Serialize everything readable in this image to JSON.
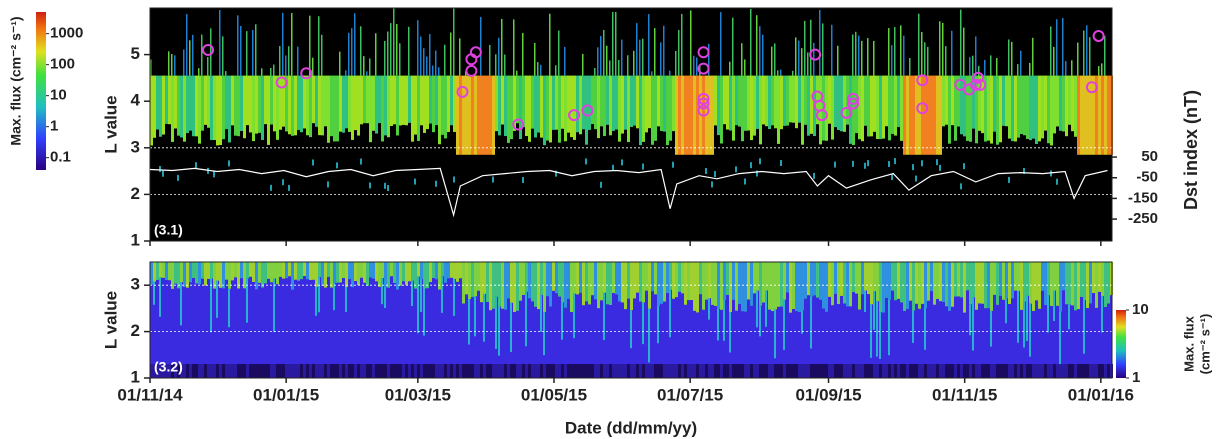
{
  "chart_data": [
    {
      "type": "scatter",
      "panel_label": "(3.1)",
      "ylabel": "L value",
      "y2label": "Dst index (nT)",
      "xlim": [
        "2014-11-01",
        "2016-01-06"
      ],
      "ylim": [
        1,
        6
      ],
      "yticks": [
        1,
        2,
        3,
        4,
        5
      ],
      "reference_lines": [
        2,
        3
      ],
      "y2lim": [
        -356,
        771
      ],
      "y2ticks": [
        50,
        -50,
        -150,
        -250
      ],
      "colorbar": {
        "label": "Max. flux (cm⁻² s⁻¹)",
        "lim": [
          0.04,
          5000
        ],
        "ticks": [
          1000,
          100,
          10,
          1,
          0.1
        ],
        "log": true
      },
      "series": [
        {
          "type": "scatter",
          "color": "#e040e0",
          "x": [
            "2014-11-27",
            "2014-12-30",
            "2015-01-10",
            "2015-03-21",
            "2015-03-25",
            "2015-03-27",
            "2015-03-25",
            "2015-04-15",
            "2015-05-10",
            "2015-05-16",
            "2015-07-07",
            "2015-07-07",
            "2015-07-07",
            "2015-07-07",
            "2015-07-07",
            "2015-08-26",
            "2015-08-27",
            "2015-08-28",
            "2015-08-29",
            "2015-09-09",
            "2015-09-12",
            "2015-09-12",
            "2015-10-13",
            "2015-10-13",
            "2015-10-30",
            "2015-11-03",
            "2015-11-06",
            "2015-11-07",
            "2015-11-08",
            "2015-12-28",
            "2015-12-31"
          ],
          "values": [
            5.1,
            4.4,
            4.6,
            4.2,
            4.9,
            5.05,
            4.65,
            3.5,
            3.7,
            3.8,
            5.05,
            4.7,
            4.05,
            3.95,
            3.8,
            5.0,
            4.1,
            3.9,
            3.7,
            3.75,
            3.95,
            4.05,
            4.45,
            3.85,
            4.35,
            4.25,
            4.35,
            4.5,
            4.35,
            4.3,
            5.4
          ]
        },
        {
          "type": "line",
          "axis": "y2",
          "color": "#ffffff",
          "x": [
            "2014-11-01",
            "2014-11-11",
            "2014-11-21",
            "2014-12-01",
            "2014-12-11",
            "2014-12-21",
            "2014-12-31",
            "2015-01-10",
            "2015-01-20",
            "2015-01-30",
            "2015-02-09",
            "2015-02-19",
            "2015-03-01",
            "2015-03-11",
            "2015-03-17",
            "2015-03-20",
            "2015-03-30",
            "2015-04-09",
            "2015-04-19",
            "2015-04-29",
            "2015-05-09",
            "2015-05-19",
            "2015-05-29",
            "2015-06-08",
            "2015-06-18",
            "2015-06-22",
            "2015-06-25",
            "2015-07-05",
            "2015-07-13",
            "2015-07-23",
            "2015-08-02",
            "2015-08-12",
            "2015-08-22",
            "2015-08-27",
            "2015-09-01",
            "2015-09-09",
            "2015-09-20",
            "2015-09-30",
            "2015-10-07",
            "2015-10-17",
            "2015-10-27",
            "2015-11-06",
            "2015-11-16",
            "2015-11-26",
            "2015-12-06",
            "2015-12-16",
            "2015-12-20",
            "2015-12-25",
            "2016-01-04"
          ],
          "values": [
            -10,
            -15,
            -5,
            -20,
            -10,
            -30,
            -15,
            -45,
            -20,
            -10,
            -40,
            -15,
            -10,
            -5,
            -230,
            -90,
            -40,
            -30,
            -20,
            -15,
            -40,
            -20,
            -15,
            -25,
            -10,
            -200,
            -80,
            -40,
            -55,
            -30,
            -20,
            -30,
            -20,
            -90,
            -40,
            -100,
            -60,
            -30,
            -110,
            -40,
            -20,
            -70,
            -30,
            -25,
            -30,
            -20,
            -150,
            -40,
            -15
          ]
        }
      ]
    },
    {
      "type": "heatmap",
      "panel_label": "(3.2)",
      "ylabel": "L value",
      "xlabel": "Date (dd/mm/yy)",
      "xlim": [
        "2014-11-01",
        "2016-01-06"
      ],
      "ylim": [
        1,
        3.5
      ],
      "yticks": [
        1,
        2,
        3
      ],
      "reference_lines": [
        2,
        3
      ],
      "xticks": [
        {
          "value": "2014-11-01",
          "label": "01/11/14"
        },
        {
          "value": "2015-01-01",
          "label": "01/01/15"
        },
        {
          "value": "2015-03-01",
          "label": "01/03/15"
        },
        {
          "value": "2015-05-01",
          "label": "01/05/15"
        },
        {
          "value": "2015-07-01",
          "label": "01/07/15"
        },
        {
          "value": "2015-09-01",
          "label": "01/09/15"
        },
        {
          "value": "2015-11-01",
          "label": "01/11/15"
        },
        {
          "value": "2016-01-01",
          "label": "01/01/16"
        }
      ],
      "colorbar": {
        "label": [
          "Max. flux",
          "(cm⁻² s⁻¹)"
        ],
        "lim": [
          1,
          10
        ],
        "ticks": [
          10,
          1
        ],
        "log": true
      }
    }
  ]
}
